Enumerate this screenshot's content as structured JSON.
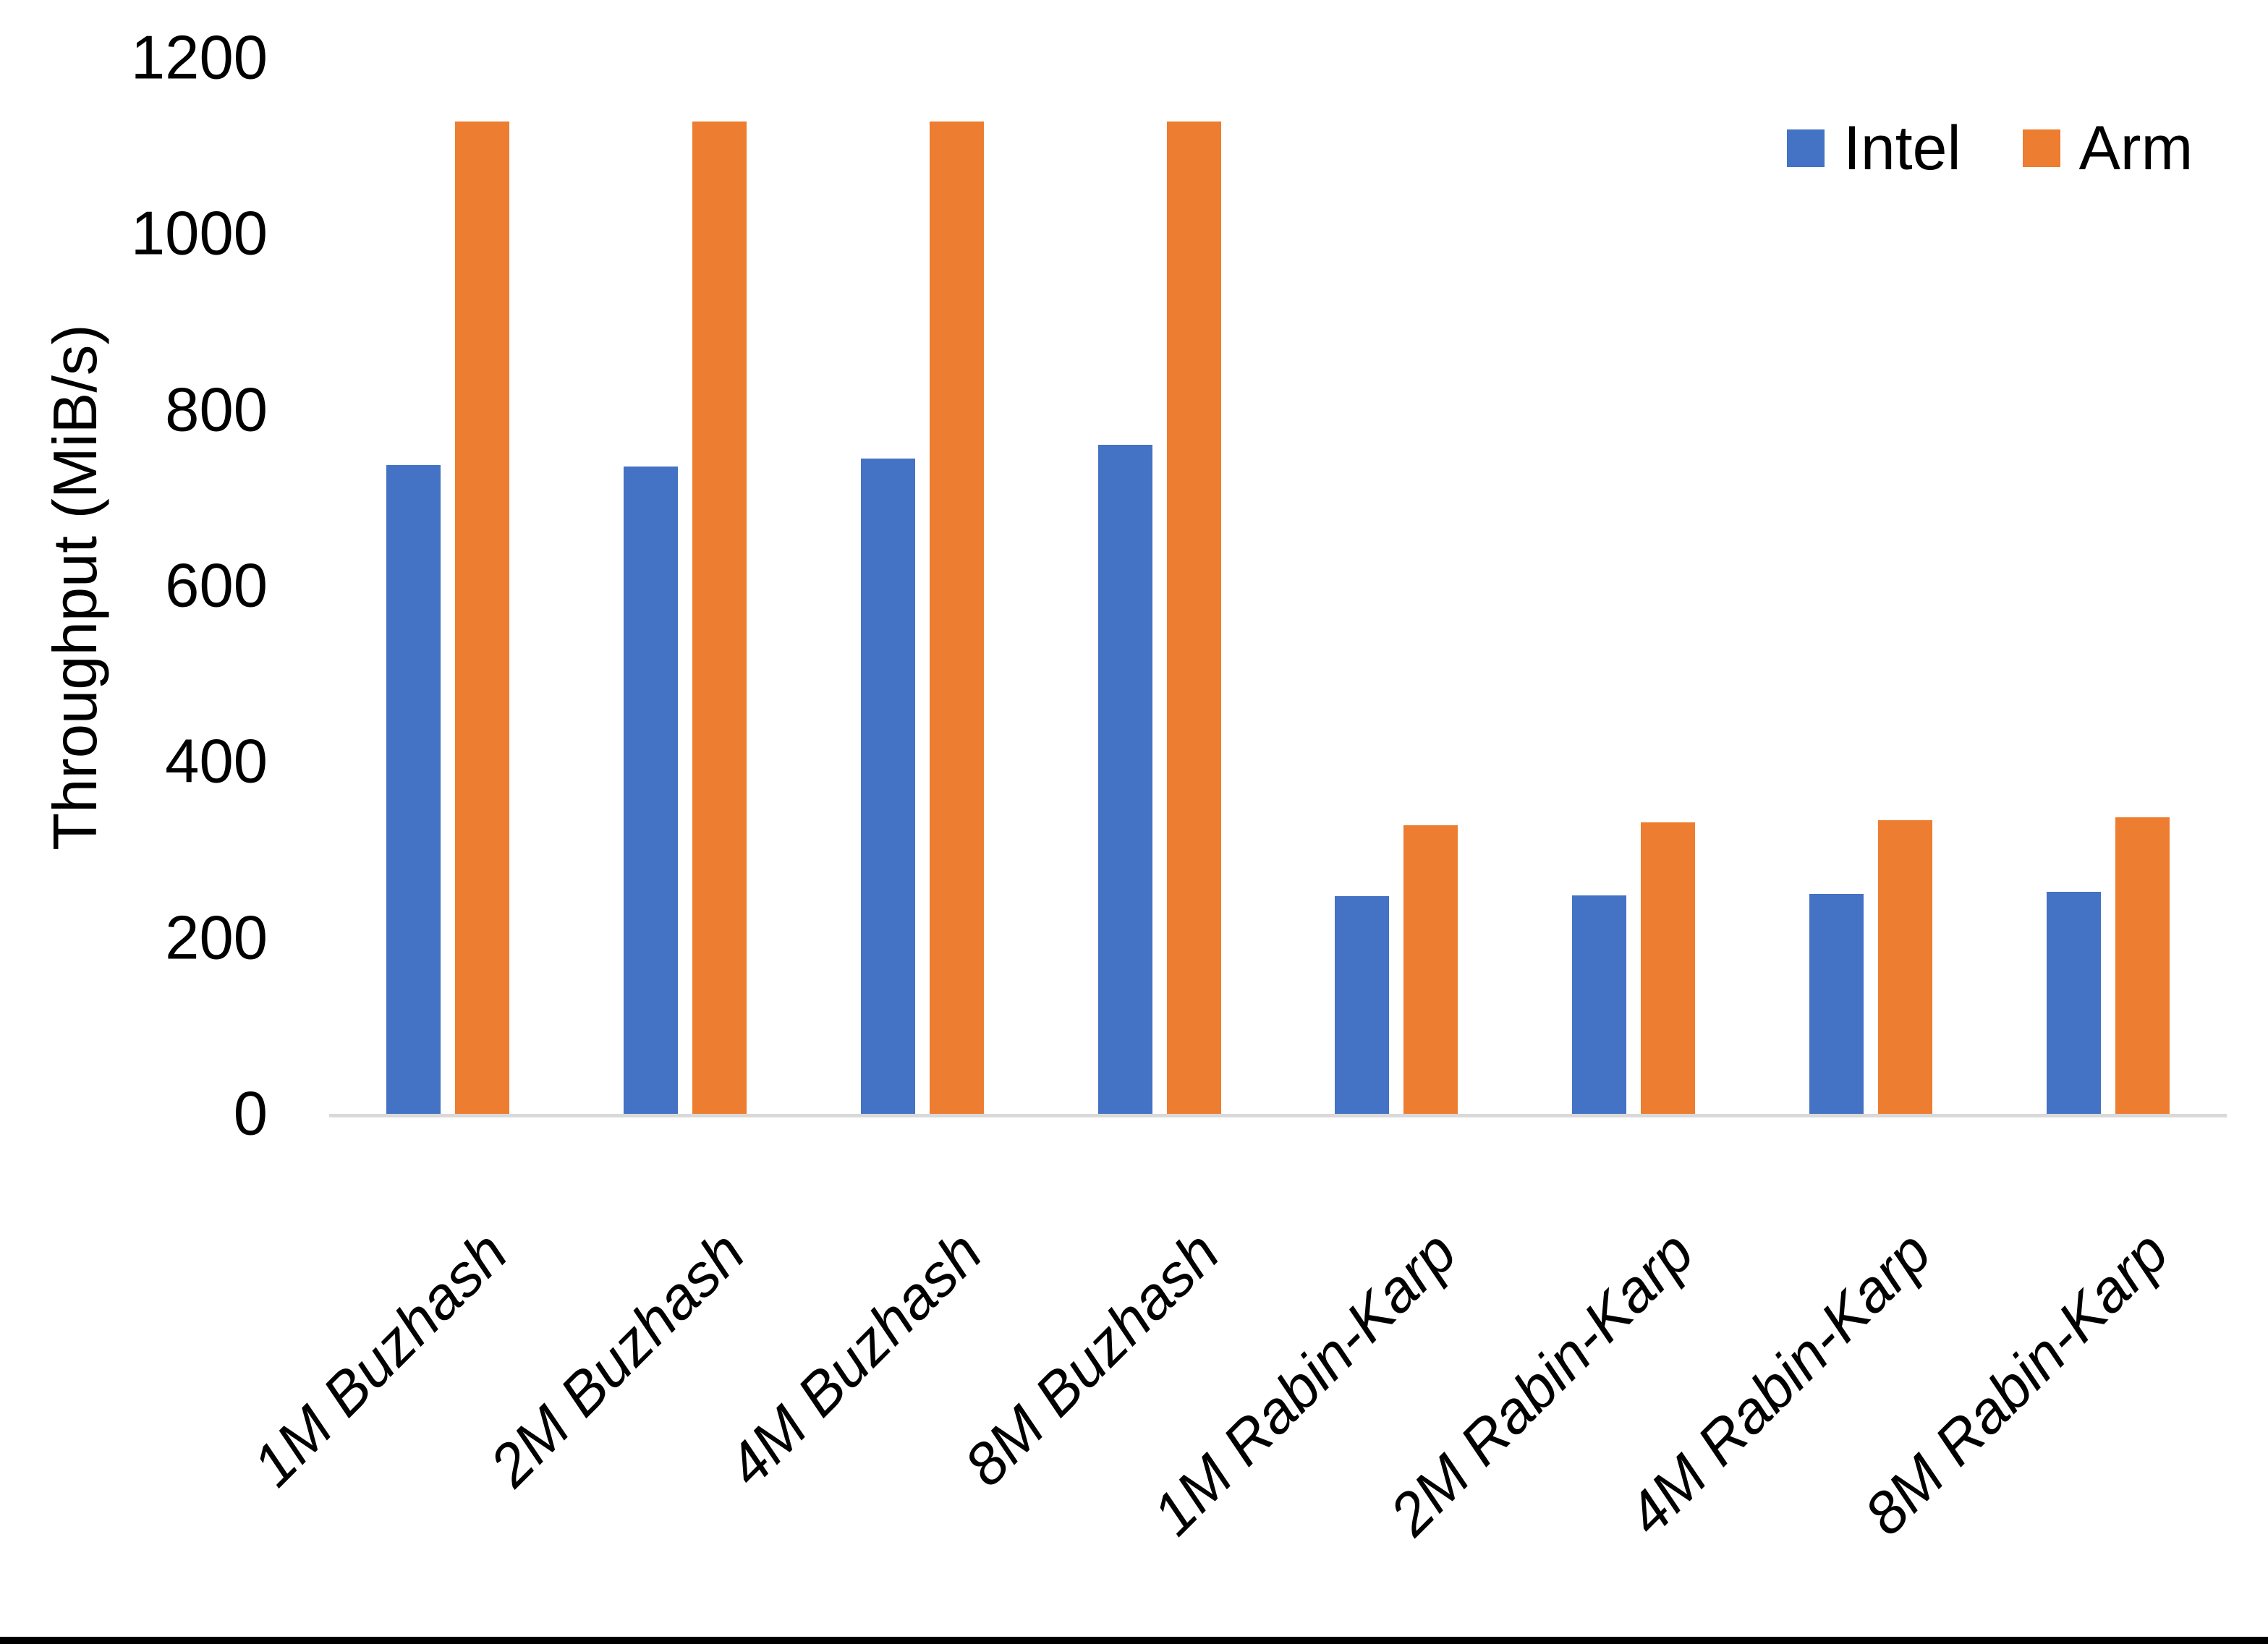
{
  "chart_data": {
    "type": "bar",
    "title": "",
    "ylabel": "Throughput (MiB/s)",
    "xlabel": "",
    "categories": [
      "1M Buzhash",
      "2M Buzhash",
      "4M Buzhash",
      "8M Buzhash",
      "1M Rabin-Karp",
      "2M Rabin-Karp",
      "4M Rabin-Karp",
      "8M Rabin-Karp"
    ],
    "series": [
      {
        "name": "Intel",
        "color": "#4472C4",
        "values": [
          737,
          736,
          745,
          760,
          247,
          248,
          250,
          252
        ]
      },
      {
        "name": "Arm",
        "color": "#ED7D31",
        "values": [
          1128,
          1128,
          1128,
          1128,
          328,
          331,
          334,
          337
        ]
      }
    ],
    "ylim": [
      0,
      1200
    ],
    "yticks": [
      0,
      200,
      400,
      600,
      800,
      1000,
      1200
    ],
    "grid": false,
    "legend_position": "top-right",
    "axis_color": "#D9D9D9",
    "text_color": "#000000"
  }
}
